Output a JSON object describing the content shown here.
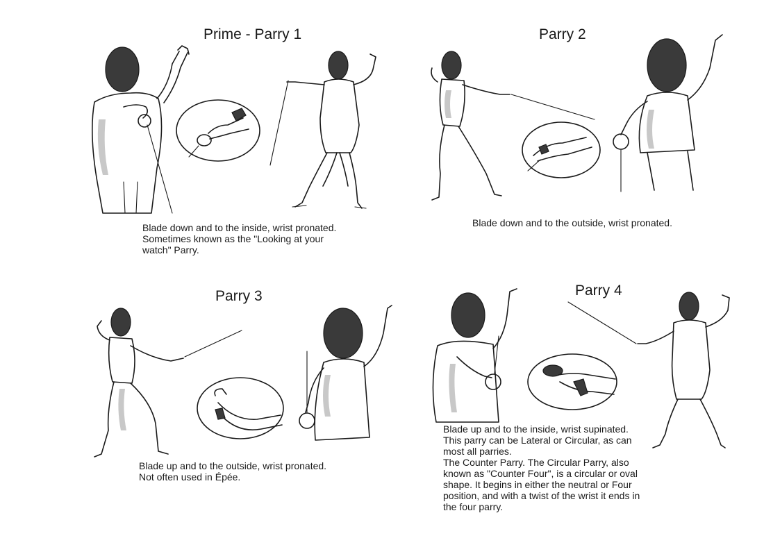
{
  "panels": [
    {
      "title": "Prime - Parry 1",
      "caption_lines": [
        "Blade down and to the inside, wrist pronated.",
        "Sometimes known as the \"Looking at your",
        "watch\" Parry."
      ]
    },
    {
      "title": "Parry 2",
      "caption_lines": [
        "Blade down and to the outside, wrist pronated."
      ]
    },
    {
      "title": "Parry 3",
      "caption_lines": [
        "Blade up and to the outside, wrist pronated.",
        "Not often used in Épée."
      ]
    },
    {
      "title": "Parry 4",
      "caption_lines": [
        "Blade up and to the inside, wrist supinated.",
        "This parry can be Lateral or Circular, as can",
        "most all parries.",
        "The Counter Parry. The Circular Parry, also",
        "known as \"Counter Four\", is a circular or oval",
        "shape. It begins in either the neutral or Four",
        "position, and with a twist of the wrist it ends in",
        "the four parry."
      ]
    }
  ],
  "icons": {
    "fencer": "fencer-illustration-icon",
    "hand_detail": "hand-grip-detail-icon"
  },
  "colors": {
    "ink": "#1a1a1a",
    "mask": "#3a3a3a",
    "paper": "#ffffff"
  }
}
